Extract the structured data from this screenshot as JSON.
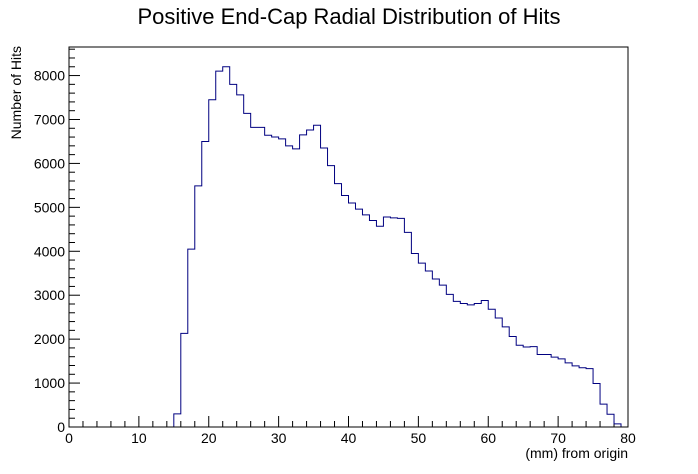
{
  "chart_data": {
    "type": "bar",
    "title": "Positive End-Cap Radial Distribution of Hits",
    "xlabel": "(mm) from origin",
    "ylabel": "Number of Hits",
    "xlim": [
      0,
      80
    ],
    "ylim": [
      0,
      8650
    ],
    "x_ticks": [
      0,
      10,
      20,
      30,
      40,
      50,
      60,
      70,
      80
    ],
    "y_ticks": [
      0,
      1000,
      2000,
      3000,
      4000,
      5000,
      6000,
      7000,
      8000
    ],
    "bin_width": 1,
    "bin_start": 0,
    "line_color": "#000080",
    "grid": false,
    "legend": "none",
    "values": [
      0,
      0,
      0,
      0,
      0,
      0,
      0,
      0,
      0,
      0,
      0,
      0,
      0,
      0,
      0,
      300,
      2130,
      4050,
      5490,
      6500,
      7450,
      8100,
      8200,
      7800,
      7560,
      7140,
      6820,
      6820,
      6640,
      6600,
      6560,
      6400,
      6330,
      6650,
      6760,
      6870,
      6350,
      5950,
      5540,
      5270,
      5100,
      4960,
      4830,
      4700,
      4570,
      4780,
      4760,
      4750,
      4430,
      3950,
      3730,
      3550,
      3370,
      3230,
      3020,
      2860,
      2810,
      2780,
      2810,
      2880,
      2680,
      2480,
      2280,
      2060,
      1860,
      1820,
      1830,
      1650,
      1650,
      1590,
      1550,
      1460,
      1390,
      1350,
      1330,
      990,
      520,
      290,
      70,
      0
    ]
  }
}
